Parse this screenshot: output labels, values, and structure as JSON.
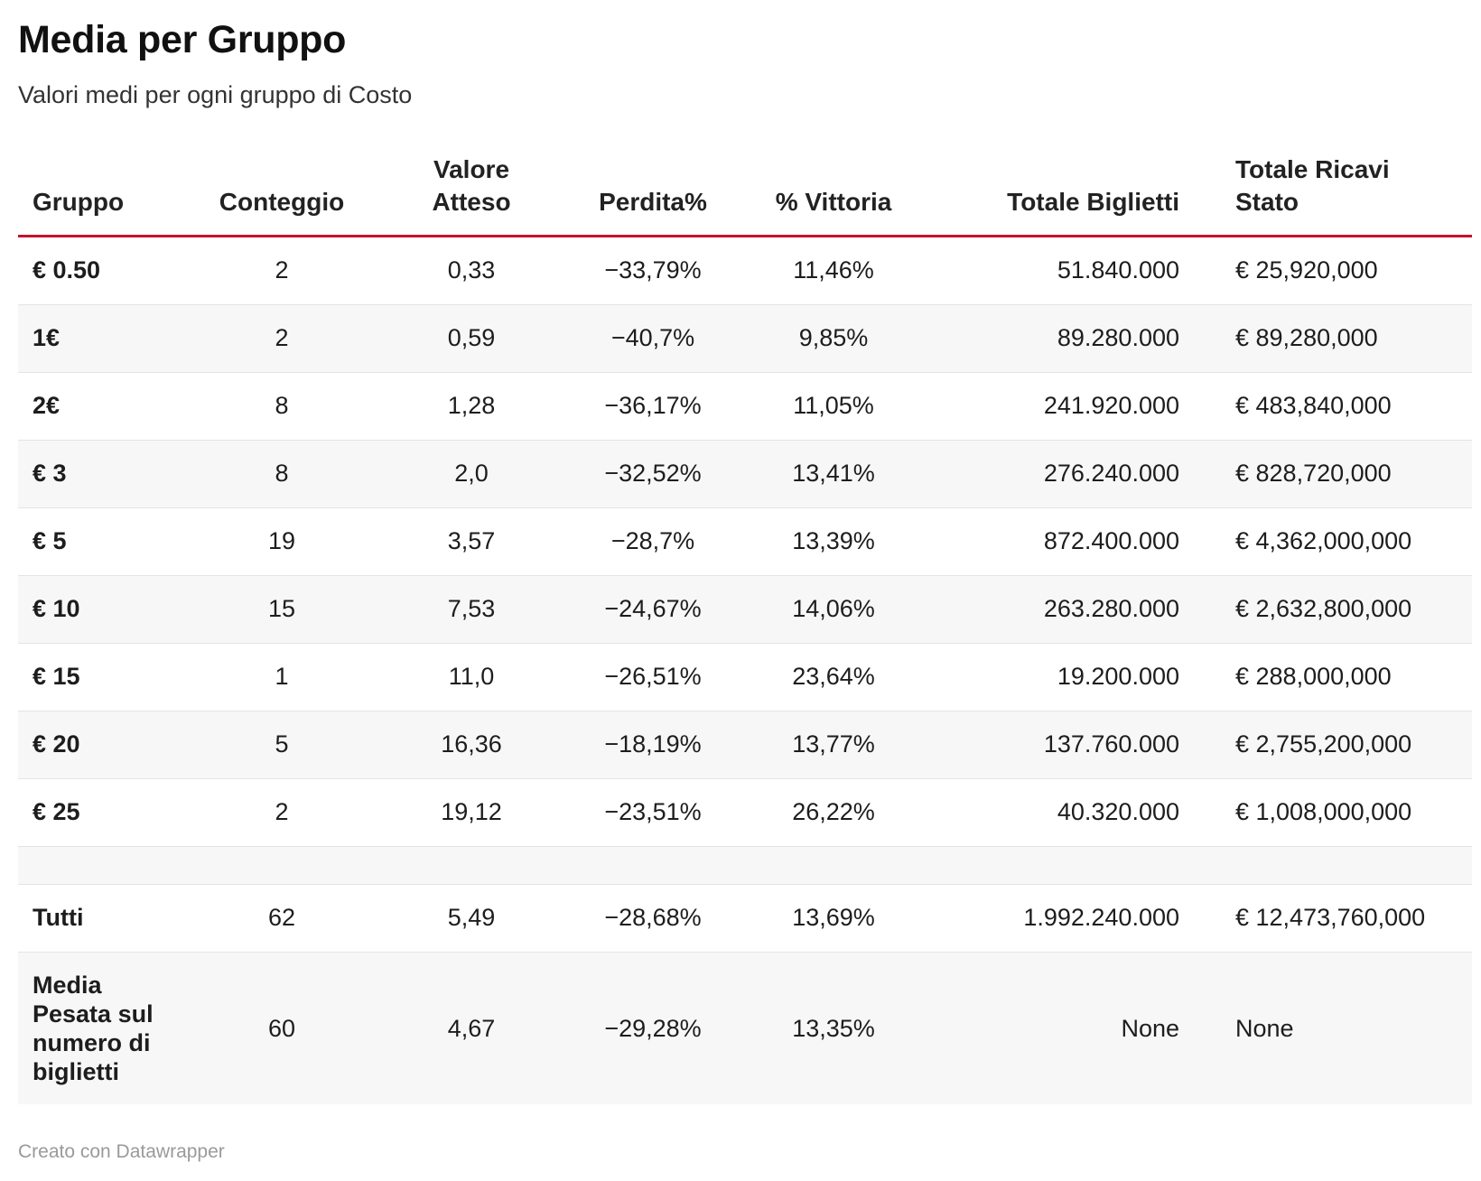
{
  "title": "Media per Gruppo",
  "subtitle": "Valori medi per ogni gruppo di Costo",
  "columns": {
    "gruppo": "Gruppo",
    "conteggio": "Conteggio",
    "valore_atteso": "Valore Atteso",
    "perdita": "Perdita%",
    "vittoria": "% Vittoria",
    "totale_biglietti": "Totale Biglietti",
    "totale_ricavi": "Totale Ricavi Stato"
  },
  "rows": [
    {
      "gruppo": "€ 0.50",
      "conteggio": "2",
      "valore_atteso": "0,33",
      "perdita": "−33,79%",
      "vittoria": "11,46%",
      "totale_biglietti": "51.840.000",
      "totale_ricavi": "€ 25,920,000"
    },
    {
      "gruppo": "1€",
      "conteggio": "2",
      "valore_atteso": "0,59",
      "perdita": "−40,7%",
      "vittoria": "9,85%",
      "totale_biglietti": "89.280.000",
      "totale_ricavi": "€ 89,280,000"
    },
    {
      "gruppo": "2€",
      "conteggio": "8",
      "valore_atteso": "1,28",
      "perdita": "−36,17%",
      "vittoria": "11,05%",
      "totale_biglietti": "241.920.000",
      "totale_ricavi": "€ 483,840,000"
    },
    {
      "gruppo": "€ 3",
      "conteggio": "8",
      "valore_atteso": "2,0",
      "perdita": "−32,52%",
      "vittoria": "13,41%",
      "totale_biglietti": "276.240.000",
      "totale_ricavi": "€ 828,720,000"
    },
    {
      "gruppo": "€ 5",
      "conteggio": "19",
      "valore_atteso": "3,57",
      "perdita": "−28,7%",
      "vittoria": "13,39%",
      "totale_biglietti": "872.400.000",
      "totale_ricavi": "€ 4,362,000,000"
    },
    {
      "gruppo": "€ 10",
      "conteggio": "15",
      "valore_atteso": "7,53",
      "perdita": "−24,67%",
      "vittoria": "14,06%",
      "totale_biglietti": "263.280.000",
      "totale_ricavi": "€ 2,632,800,000"
    },
    {
      "gruppo": "€ 15",
      "conteggio": "1",
      "valore_atteso": "11,0",
      "perdita": "−26,51%",
      "vittoria": "23,64%",
      "totale_biglietti": "19.200.000",
      "totale_ricavi": "€ 288,000,000"
    },
    {
      "gruppo": "€ 20",
      "conteggio": "5",
      "valore_atteso": "16,36",
      "perdita": "−18,19%",
      "vittoria": "13,77%",
      "totale_biglietti": "137.760.000",
      "totale_ricavi": "€ 2,755,200,000"
    },
    {
      "gruppo": "€ 25",
      "conteggio": "2",
      "valore_atteso": "19,12",
      "perdita": "−23,51%",
      "vittoria": "26,22%",
      "totale_biglietti": "40.320.000",
      "totale_ricavi": "€ 1,008,000,000"
    },
    {
      "gruppo": "",
      "conteggio": "",
      "valore_atteso": "",
      "perdita": "",
      "vittoria": "",
      "totale_biglietti": "",
      "totale_ricavi": ""
    },
    {
      "gruppo": "Tutti",
      "conteggio": "62",
      "valore_atteso": "5,49",
      "perdita": "−28,68%",
      "vittoria": "13,69%",
      "totale_biglietti": "1.992.240.000",
      "totale_ricavi": "€ 12,473,760,000"
    },
    {
      "gruppo": "Media Pesata sul numero di biglietti",
      "conteggio": "60",
      "valore_atteso": "4,67",
      "perdita": "−29,28%",
      "vittoria": "13,35%",
      "totale_biglietti": "None",
      "totale_ricavi": "None"
    }
  ],
  "footer": "Creato con Datawrapper"
}
